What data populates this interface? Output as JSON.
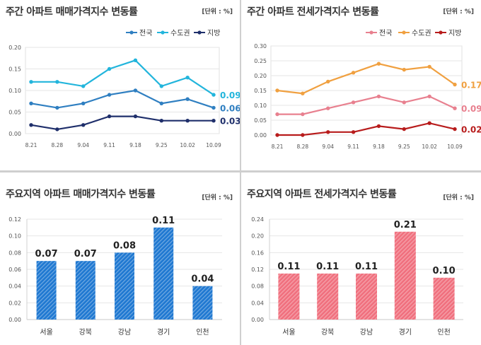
{
  "chart_data": [
    {
      "id": "sale_trend",
      "type": "line",
      "title": "주간 아파트 매매가격지수 변동률",
      "unit": "[단위 : %]",
      "x": [
        "8.21",
        "8.28",
        "9.04",
        "9.11",
        "9.18",
        "9.25",
        "10.02",
        "10.09"
      ],
      "ylim": [
        0,
        0.2
      ],
      "yticks": [
        "0.20",
        "0.15",
        "0.10",
        "0.05",
        "0.00"
      ],
      "series": [
        {
          "name": "전국",
          "values": [
            0.07,
            0.06,
            0.07,
            0.09,
            0.1,
            0.07,
            0.08,
            0.06
          ],
          "color": "#2f7fc1",
          "end_label": "0.06"
        },
        {
          "name": "수도권",
          "values": [
            0.12,
            0.12,
            0.11,
            0.15,
            0.17,
            0.11,
            0.13,
            0.09
          ],
          "color": "#22b5dc",
          "end_label": "0.09"
        },
        {
          "name": "지방",
          "values": [
            0.02,
            0.01,
            0.02,
            0.04,
            0.04,
            0.03,
            0.03,
            0.03
          ],
          "color": "#1f2f6b",
          "end_label": "0.03"
        }
      ],
      "legend": "top-right"
    },
    {
      "id": "jeonse_trend",
      "type": "line",
      "title": "주간 아파트 전세가격지수 변동률",
      "unit": "[단위 : %]",
      "x": [
        "8.21",
        "8.28",
        "9.04",
        "9.11",
        "9.18",
        "9.25",
        "10.02",
        "10.09"
      ],
      "ylim": [
        0,
        0.3
      ],
      "yticks": [
        "0.30",
        "0.25",
        "0.20",
        "0.15",
        "0.10",
        "0.05",
        "0.00"
      ],
      "series": [
        {
          "name": "전국",
          "values": [
            0.07,
            0.07,
            0.09,
            0.11,
            0.13,
            0.11,
            0.13,
            0.09
          ],
          "color": "#e8808f",
          "end_label": "0.09"
        },
        {
          "name": "수도권",
          "values": [
            0.15,
            0.14,
            0.18,
            0.21,
            0.24,
            0.22,
            0.23,
            0.17
          ],
          "color": "#f0a040",
          "end_label": "0.17"
        },
        {
          "name": "지방",
          "values": [
            0.0,
            0.0,
            0.01,
            0.01,
            0.03,
            0.02,
            0.04,
            0.02
          ],
          "color": "#b81c1c",
          "end_label": "0.02"
        }
      ],
      "legend": "top-right"
    },
    {
      "id": "sale_region",
      "type": "bar",
      "title": "주요지역 아파트 매매가격지수 변동률",
      "unit": "[단위 : %]",
      "categories": [
        "서울",
        "강북",
        "강남",
        "경기",
        "인천"
      ],
      "values": [
        0.07,
        0.07,
        0.08,
        0.11,
        0.04
      ],
      "labels": [
        "0.07",
        "0.07",
        "0.08",
        "0.11",
        "0.04"
      ],
      "ylim": [
        0,
        0.12
      ],
      "yticks": [
        "0.12",
        "0.10",
        "0.08",
        "0.06",
        "0.04",
        "0.02",
        "0.00"
      ],
      "color": "#1f78d1"
    },
    {
      "id": "jeonse_region",
      "type": "bar",
      "title": "주요지역 아파트 전세가격지수 변동률",
      "unit": "[단위 : %]",
      "categories": [
        "서울",
        "강북",
        "강남",
        "경기",
        "인천"
      ],
      "values": [
        0.11,
        0.11,
        0.11,
        0.21,
        0.1
      ],
      "labels": [
        "0.11",
        "0.11",
        "0.11",
        "0.21",
        "0.10"
      ],
      "ylim": [
        0,
        0.24
      ],
      "yticks": [
        "0.24",
        "0.20",
        "0.16",
        "0.12",
        "0.08",
        "0.04",
        "0.00"
      ],
      "color": "#f0707e"
    }
  ]
}
